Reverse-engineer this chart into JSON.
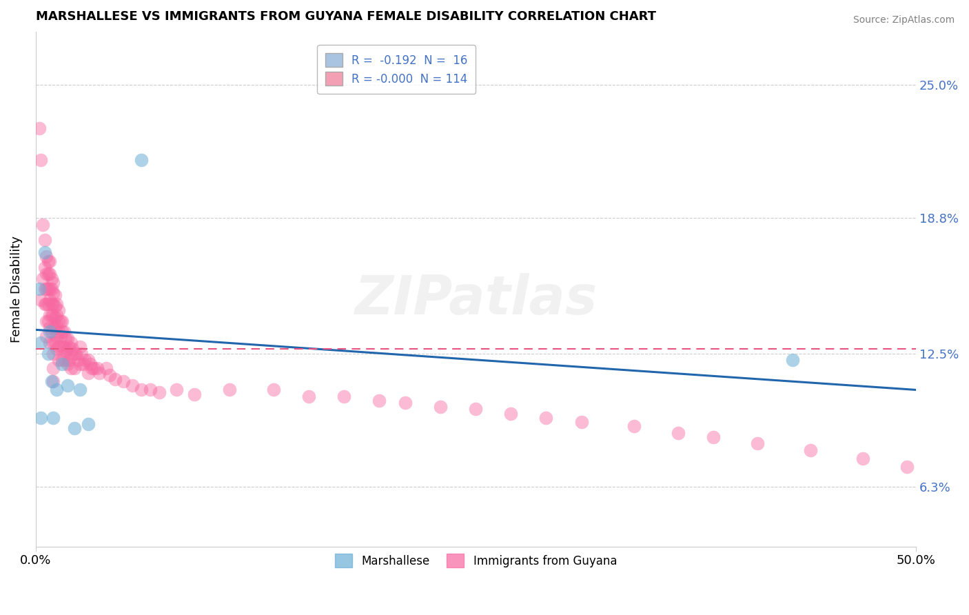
{
  "title": "MARSHALLESE VS IMMIGRANTS FROM GUYANA FEMALE DISABILITY CORRELATION CHART",
  "source": "Source: ZipAtlas.com",
  "ylabel": "Female Disability",
  "yticks": [
    "6.3%",
    "12.5%",
    "18.8%",
    "25.0%"
  ],
  "ytick_vals": [
    0.063,
    0.125,
    0.188,
    0.25
  ],
  "xmin": 0.0,
  "xmax": 0.5,
  "ymin": 0.035,
  "ymax": 0.275,
  "blue_color": "#6baed6",
  "pink_color": "#f768a1",
  "watermark": "ZIPatlas",
  "blue_trend_start": 0.136,
  "blue_trend_end": 0.108,
  "pink_trend_y": 0.127,
  "marshallese_x": [
    0.002,
    0.003,
    0.003,
    0.005,
    0.007,
    0.008,
    0.009,
    0.01,
    0.012,
    0.015,
    0.018,
    0.022,
    0.025,
    0.03,
    0.06,
    0.43
  ],
  "marshallese_y": [
    0.155,
    0.13,
    0.095,
    0.172,
    0.125,
    0.135,
    0.112,
    0.095,
    0.108,
    0.12,
    0.11,
    0.09,
    0.108,
    0.092,
    0.215,
    0.122
  ],
  "guyana_x": [
    0.002,
    0.003,
    0.003,
    0.004,
    0.004,
    0.005,
    0.005,
    0.005,
    0.005,
    0.006,
    0.006,
    0.006,
    0.006,
    0.006,
    0.006,
    0.007,
    0.007,
    0.007,
    0.007,
    0.007,
    0.008,
    0.008,
    0.008,
    0.008,
    0.008,
    0.008,
    0.008,
    0.009,
    0.009,
    0.009,
    0.009,
    0.009,
    0.01,
    0.01,
    0.01,
    0.01,
    0.01,
    0.01,
    0.01,
    0.01,
    0.01,
    0.011,
    0.011,
    0.011,
    0.011,
    0.011,
    0.012,
    0.012,
    0.012,
    0.012,
    0.012,
    0.013,
    0.013,
    0.013,
    0.013,
    0.013,
    0.014,
    0.014,
    0.015,
    0.015,
    0.015,
    0.015,
    0.016,
    0.016,
    0.016,
    0.017,
    0.017,
    0.018,
    0.018,
    0.018,
    0.019,
    0.019,
    0.02,
    0.02,
    0.02,
    0.021,
    0.022,
    0.022,
    0.023,
    0.024,
    0.025,
    0.025,
    0.026,
    0.027,
    0.028,
    0.03,
    0.03,
    0.031,
    0.032,
    0.033,
    0.035,
    0.036,
    0.04,
    0.042,
    0.045,
    0.05,
    0.055,
    0.06,
    0.065,
    0.07,
    0.08,
    0.09,
    0.11,
    0.135,
    0.155,
    0.175,
    0.195,
    0.21,
    0.23,
    0.25,
    0.27,
    0.29,
    0.31,
    0.34,
    0.365,
    0.385,
    0.41,
    0.44,
    0.47,
    0.495
  ],
  "guyana_y": [
    0.23,
    0.215,
    0.15,
    0.185,
    0.16,
    0.178,
    0.165,
    0.155,
    0.148,
    0.17,
    0.162,
    0.155,
    0.148,
    0.14,
    0.133,
    0.168,
    0.162,
    0.155,
    0.148,
    0.14,
    0.168,
    0.162,
    0.155,
    0.15,
    0.143,
    0.137,
    0.13,
    0.16,
    0.155,
    0.148,
    0.143,
    0.135,
    0.158,
    0.153,
    0.148,
    0.143,
    0.137,
    0.13,
    0.125,
    0.118,
    0.112,
    0.152,
    0.147,
    0.142,
    0.137,
    0.13,
    0.148,
    0.143,
    0.138,
    0.133,
    0.127,
    0.145,
    0.14,
    0.135,
    0.128,
    0.122,
    0.14,
    0.133,
    0.14,
    0.135,
    0.128,
    0.122,
    0.135,
    0.128,
    0.122,
    0.132,
    0.126,
    0.132,
    0.127,
    0.12,
    0.128,
    0.122,
    0.13,
    0.124,
    0.118,
    0.127,
    0.125,
    0.118,
    0.125,
    0.122,
    0.128,
    0.12,
    0.125,
    0.12,
    0.122,
    0.122,
    0.116,
    0.12,
    0.118,
    0.118,
    0.118,
    0.116,
    0.118,
    0.115,
    0.113,
    0.112,
    0.11,
    0.108,
    0.108,
    0.107,
    0.108,
    0.106,
    0.108,
    0.108,
    0.105,
    0.105,
    0.103,
    0.102,
    0.1,
    0.099,
    0.097,
    0.095,
    0.093,
    0.091,
    0.088,
    0.086,
    0.083,
    0.08,
    0.076,
    0.072
  ]
}
